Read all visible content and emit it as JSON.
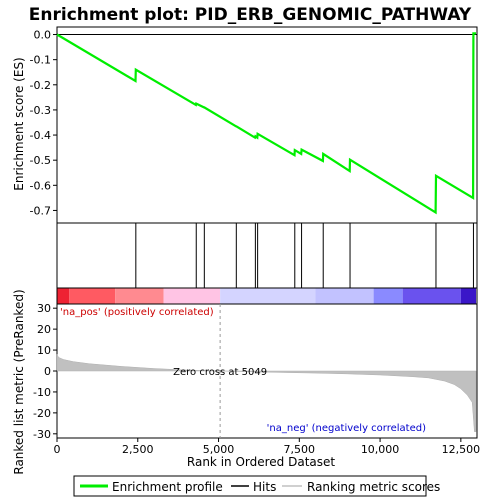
{
  "chart_data": {
    "type": "line",
    "title": "Enrichment plot: PID_ERB_GENOMIC_PATHWAY",
    "xlabel": "Rank in Ordered Dataset",
    "ylabel_top": "Enrichment score (ES)",
    "ylabel_bottom": "Ranked list metric (PreRanked)",
    "xlim": [
      0,
      13000
    ],
    "xticks": [
      0,
      2500,
      5000,
      7500,
      10000,
      12500
    ],
    "xtick_labels": [
      "0",
      "2,500",
      "5,000",
      "7,500",
      "10,000",
      "12,500"
    ],
    "es_ylim": [
      -0.75,
      0.03
    ],
    "es_yticks": [
      0.0,
      -0.1,
      -0.2,
      -0.3,
      -0.4,
      -0.5,
      -0.6,
      -0.7
    ],
    "es_ytick_labels": [
      "0.0",
      "-0.1",
      "-0.2",
      "-0.3",
      "-0.4",
      "-0.5",
      "-0.6",
      "-0.7"
    ],
    "metric_ylim": [
      -32,
      32
    ],
    "metric_yticks": [
      30,
      20,
      10,
      0,
      -10,
      -20,
      -30
    ],
    "metric_ytick_labels": [
      "30",
      "20",
      "10",
      "0",
      "-10",
      "-20",
      "-30"
    ],
    "series": [
      {
        "name": "Enrichment profile",
        "color": "#00ee00",
        "x": [
          0,
          2430,
          2440,
          4300,
          4310,
          4550,
          4560,
          5540,
          5550,
          6130,
          6140,
          6200,
          6210,
          7350,
          7360,
          7560,
          7570,
          8230,
          8240,
          9060,
          9070,
          11720,
          11730,
          12880,
          12890,
          12970
        ],
        "y": [
          0.0,
          -0.185,
          -0.14,
          -0.28,
          -0.275,
          -0.29,
          -0.29,
          -0.365,
          -0.365,
          -0.41,
          -0.405,
          -0.41,
          -0.395,
          -0.48,
          -0.46,
          -0.475,
          -0.458,
          -0.503,
          -0.475,
          -0.543,
          -0.498,
          -0.708,
          -0.562,
          -0.65,
          0.005,
          0.005
        ]
      }
    ],
    "hits": [
      2440,
      4310,
      4560,
      5550,
      6140,
      6210,
      7360,
      7570,
      8240,
      9070,
      11730,
      12890
    ],
    "hits_label": "Hits",
    "metric_series": {
      "name": "Ranking metric scores",
      "x": [
        0,
        50,
        200,
        500,
        1000,
        2000,
        3000,
        4000,
        5049,
        6000,
        7000,
        8000,
        9000,
        10000,
        11000,
        11500,
        12000,
        12300,
        12500,
        12700,
        12850,
        12920,
        12970
      ],
      "y": [
        8,
        6.5,
        5.5,
        4.5,
        3.5,
        2.2,
        1.2,
        0.5,
        0.0,
        -0.4,
        -0.7,
        -1.0,
        -1.4,
        -1.9,
        -2.7,
        -3.3,
        -4.8,
        -6.5,
        -8.5,
        -11.5,
        -15.0,
        -29.0,
        -29.0
      ]
    },
    "zero_cross_label": "Zero cross at 5049",
    "zero_cross_x": 5049,
    "pos_label": "'na_pos' (positively correlated)",
    "neg_label": "'na_neg' (negatively correlated)",
    "colors": {
      "profile": "#00ee00",
      "hits": "#000000",
      "metric_fill": "#c0c0c0",
      "pos_text": "#cc0000",
      "neg_text": "#0000cc"
    },
    "color_bar": [
      {
        "x0": 0,
        "x1": 380,
        "color": "#ee2233"
      },
      {
        "x0": 380,
        "x1": 1800,
        "color": "#ff5a62"
      },
      {
        "x0": 1800,
        "x1": 3300,
        "color": "#ff8a90"
      },
      {
        "x0": 3300,
        "x1": 5049,
        "color": "#ffc4e4"
      },
      {
        "x0": 5049,
        "x1": 8000,
        "color": "#d4d4ff"
      },
      {
        "x0": 8000,
        "x1": 9800,
        "color": "#c2c2ff"
      },
      {
        "x0": 9800,
        "x1": 10700,
        "color": "#8a8aff"
      },
      {
        "x0": 10700,
        "x1": 12500,
        "color": "#6a52ee"
      },
      {
        "x0": 12500,
        "x1": 12970,
        "color": "#3a16c8"
      }
    ],
    "legend": [
      "Enrichment profile",
      "Hits",
      "Ranking metric scores"
    ]
  }
}
